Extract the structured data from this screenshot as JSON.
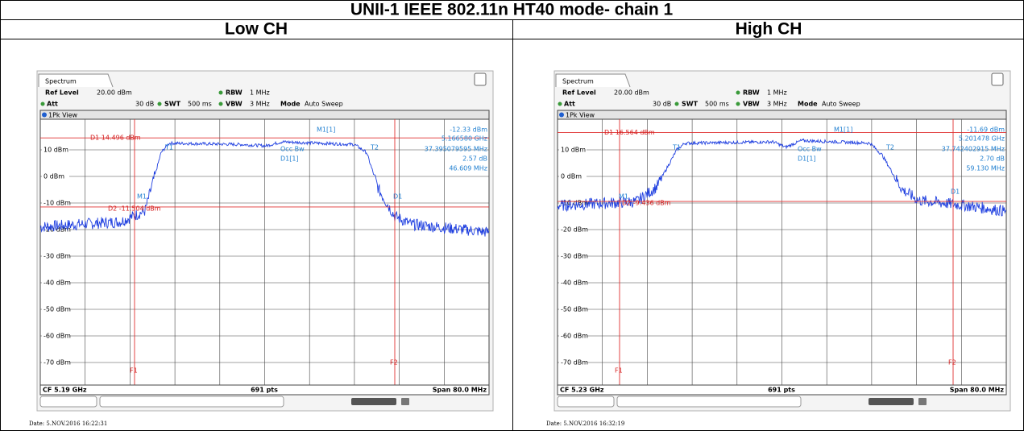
{
  "title": "UNII-1 IEEE 802.11n HT40 mode- chain 1",
  "columns": [
    "Low CH",
    "High CH"
  ],
  "panels": [
    {
      "tab": "Spectrum",
      "ref_level_label": "Ref Level",
      "ref_level": "20.00 dBm",
      "att_label": "Att",
      "att": "30 dB",
      "swt_label": "SWT",
      "swt": "500 ms",
      "rbw_label": "RBW",
      "rbw": "1 MHz",
      "vbw_label": "VBW",
      "vbw": "3 MHz",
      "mode_label": "Mode",
      "mode": "Auto Sweep",
      "view": "1Pk View",
      "m1_label": "M1[1]",
      "m1_level": "-12.33 dBm",
      "m1_freq": "5.166580 GHz",
      "occ_label": "Occ Bw",
      "occ_value": "37.395079595 MHz",
      "d1_label": "D1[1]",
      "d1_level": "2.57 dB",
      "d1_freq": "46.609 MHz",
      "d1_line": "D1 14.496 dBm",
      "d2_line": "D2 -11.504 dBm",
      "y_labels": [
        "10 dBm",
        "0 dBm",
        "-10 dBm",
        "-20 dBm",
        "-30 dBm",
        "-40 dBm",
        "-50 dBm",
        "-60 dBm",
        "-70 dBm"
      ],
      "markers": [
        "M1",
        "T1",
        "T2",
        "D1"
      ],
      "f1": "F1",
      "f2": "F2",
      "cf": "CF 5.19 GHz",
      "pts": "691 pts",
      "span": "Span 80.0 MHz",
      "date": "Date: 5.NOV.2016 16:22:31"
    },
    {
      "tab": "Spectrum",
      "ref_level_label": "Ref Level",
      "ref_level": "20.00 dBm",
      "att_label": "Att",
      "att": "30 dB",
      "swt_label": "SWT",
      "swt": "500 ms",
      "rbw_label": "RBW",
      "rbw": "1 MHz",
      "vbw_label": "VBW",
      "vbw": "3 MHz",
      "mode_label": "Mode",
      "mode": "Auto Sweep",
      "view": "1Pk View",
      "m1_label": "M1[1]",
      "m1_level": "-11.69 dBm",
      "m1_freq": "5.201478 GHz",
      "occ_label": "Occ Bw",
      "occ_value": "37.742402915 MHz",
      "d1_label": "D1[1]",
      "d1_level": "2.70 dB",
      "d1_freq": "59.130 MHz",
      "d1_line": "D1 16.564 dBm",
      "d2_line": "D2 -9.436 dBm",
      "y_labels": [
        "10 dBm",
        "0 dBm",
        "-10 dBm",
        "-20 dBm",
        "-30 dBm",
        "-40 dBm",
        "-50 dBm",
        "-60 dBm",
        "-70 dBm"
      ],
      "markers": [
        "M1",
        "T1",
        "T2",
        "D1"
      ],
      "f1": "F1",
      "f2": "F2",
      "cf": "CF 5.23 GHz",
      "pts": "691 pts",
      "span": "Span 80.0 MHz",
      "date": "Date: 5.NOV.2016 16:32:19"
    }
  ]
}
